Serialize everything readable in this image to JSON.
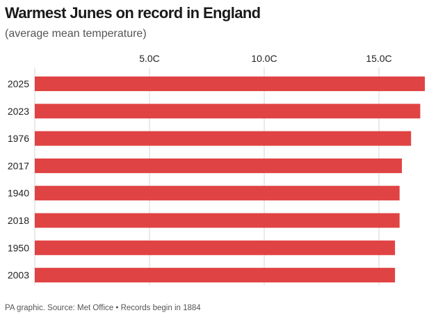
{
  "header": {
    "title": "Warmest Junes on record in England",
    "subtitle": "(average mean temperature)"
  },
  "footer": {
    "source": "PA graphic. Source: Met Office • Records begin in 1884"
  },
  "colors": {
    "bar": "#e04343",
    "grid": "#d6d6d6",
    "text": "#222222"
  },
  "chart_data": {
    "type": "bar",
    "orientation": "horizontal",
    "title": "Warmest Junes on record in England",
    "subtitle": "(average mean temperature)",
    "categories": [
      "2025",
      "2023",
      "1976",
      "2017",
      "1940",
      "2018",
      "1950",
      "2003"
    ],
    "values": [
      17.0,
      16.8,
      16.4,
      16.0,
      15.9,
      15.9,
      15.7,
      15.7
    ],
    "xticks": [
      5.0,
      10.0,
      15.0
    ],
    "xtick_labels": [
      "5.0C",
      "10.0C",
      "15.0C"
    ],
    "xlim": [
      0,
      17
    ],
    "axis_position": "top",
    "grid": true,
    "unit": "C"
  }
}
